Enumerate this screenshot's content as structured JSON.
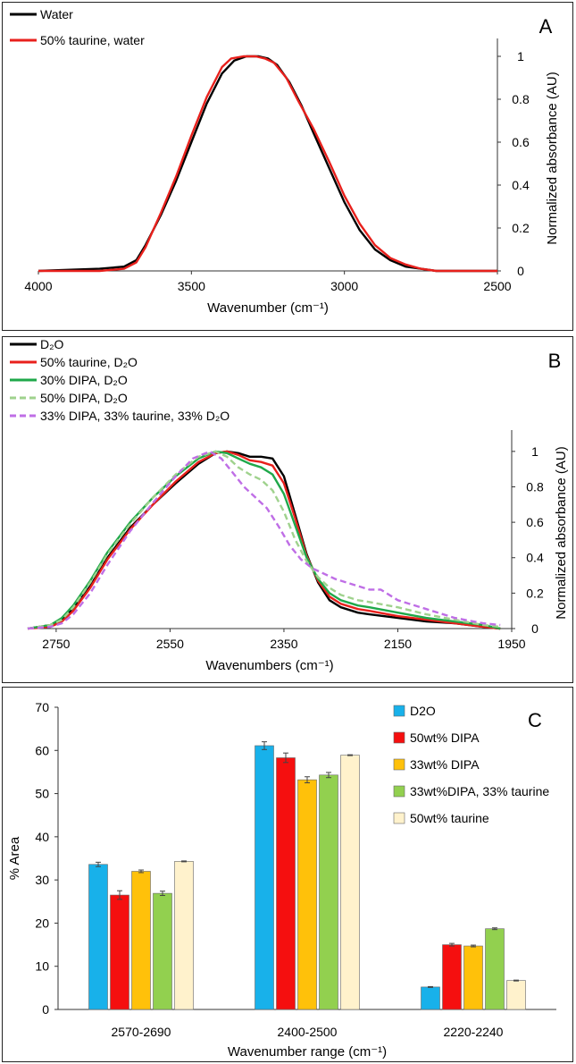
{
  "chart_data": [
    {
      "panel_label": "A",
      "type": "line",
      "xlabel": "Wavenumber (cm⁻¹)",
      "ylabel": "Normalized absorbance (AU)",
      "xlim": [
        4000,
        2500
      ],
      "ylim": [
        0,
        1.05
      ],
      "x_ticks": [
        "4000",
        "3500",
        "3000",
        "2500"
      ],
      "y_ticks": [
        "0",
        "0.2",
        "0.4",
        "0.6",
        "0.8",
        "1"
      ],
      "legend_position": "top-left",
      "series": [
        {
          "name": "Water",
          "color": "#000000",
          "dash": "solid",
          "x": [
            4000,
            3800,
            3720,
            3680,
            3650,
            3600,
            3550,
            3500,
            3450,
            3400,
            3360,
            3320,
            3280,
            3250,
            3220,
            3180,
            3140,
            3100,
            3050,
            3000,
            2950,
            2900,
            2850,
            2800,
            2750,
            2700,
            2600,
            2500
          ],
          "y": [
            0,
            0.01,
            0.02,
            0.05,
            0.12,
            0.26,
            0.42,
            0.6,
            0.78,
            0.92,
            0.98,
            1.0,
            1.0,
            0.99,
            0.96,
            0.88,
            0.77,
            0.64,
            0.48,
            0.32,
            0.19,
            0.1,
            0.05,
            0.02,
            0.01,
            0.0,
            0,
            0
          ]
        },
        {
          "name": "50% taurine, water",
          "color": "#e8201c",
          "dash": "solid",
          "x": [
            4000,
            3800,
            3720,
            3680,
            3650,
            3600,
            3550,
            3500,
            3450,
            3400,
            3370,
            3330,
            3290,
            3260,
            3230,
            3190,
            3150,
            3100,
            3050,
            3000,
            2950,
            2900,
            2850,
            2800,
            2750,
            2700,
            2600,
            2500
          ],
          "y": [
            0,
            0.0,
            0.01,
            0.04,
            0.11,
            0.27,
            0.44,
            0.63,
            0.81,
            0.95,
            0.99,
            1.0,
            1.0,
            0.99,
            0.97,
            0.9,
            0.79,
            0.66,
            0.51,
            0.35,
            0.22,
            0.12,
            0.06,
            0.03,
            0.01,
            0.0,
            0,
            0
          ]
        }
      ]
    },
    {
      "panel_label": "B",
      "type": "line",
      "xlabel": "Wavenumbers (cm⁻¹)",
      "ylabel": "Normalized absorbance (AU)",
      "xlim": [
        2800,
        1950
      ],
      "ylim": [
        0,
        1.08
      ],
      "x_ticks": [
        "2750",
        "2550",
        "2350",
        "2150",
        "1950"
      ],
      "y_ticks": [
        "0",
        "0.2",
        "0.4",
        "0.6",
        "0.8",
        "1"
      ],
      "legend_position": "top-left",
      "series": [
        {
          "name": "D₂O",
          "color": "#000000",
          "dash": "solid",
          "x": [
            2800,
            2760,
            2740,
            2720,
            2690,
            2660,
            2620,
            2580,
            2540,
            2500,
            2470,
            2450,
            2430,
            2410,
            2390,
            2370,
            2350,
            2330,
            2310,
            2290,
            2270,
            2250,
            2220,
            2200,
            2150,
            2100,
            2050,
            2000,
            1970
          ],
          "y": [
            0,
            0.02,
            0.05,
            0.11,
            0.24,
            0.4,
            0.57,
            0.7,
            0.82,
            0.93,
            0.99,
            1.0,
            0.99,
            0.97,
            0.97,
            0.96,
            0.86,
            0.64,
            0.42,
            0.26,
            0.16,
            0.12,
            0.09,
            0.08,
            0.06,
            0.04,
            0.03,
            0.01,
            0.0
          ]
        },
        {
          "name": "50% taurine, D₂O",
          "color": "#e8201c",
          "dash": "solid",
          "x": [
            2800,
            2760,
            2740,
            2720,
            2690,
            2660,
            2620,
            2580,
            2540,
            2500,
            2470,
            2450,
            2430,
            2410,
            2390,
            2370,
            2350,
            2330,
            2310,
            2290,
            2270,
            2250,
            2220,
            2200,
            2150,
            2100,
            2050,
            2000,
            1970
          ],
          "y": [
            0,
            0.01,
            0.04,
            0.1,
            0.23,
            0.39,
            0.56,
            0.7,
            0.83,
            0.94,
            0.99,
            1.0,
            0.98,
            0.95,
            0.94,
            0.92,
            0.82,
            0.62,
            0.41,
            0.27,
            0.18,
            0.14,
            0.11,
            0.1,
            0.07,
            0.05,
            0.03,
            0.01,
            0.0
          ]
        },
        {
          "name": "30% DIPA, D₂O",
          "color": "#1fa84a",
          "dash": "solid",
          "x": [
            2800,
            2760,
            2740,
            2720,
            2690,
            2660,
            2620,
            2580,
            2540,
            2500,
            2470,
            2450,
            2430,
            2410,
            2390,
            2370,
            2350,
            2330,
            2310,
            2290,
            2270,
            2250,
            2220,
            2200,
            2150,
            2100,
            2050,
            2000,
            1970
          ],
          "y": [
            0,
            0.02,
            0.06,
            0.13,
            0.27,
            0.43,
            0.6,
            0.74,
            0.86,
            0.96,
            1.0,
            0.99,
            0.96,
            0.93,
            0.91,
            0.87,
            0.76,
            0.58,
            0.4,
            0.28,
            0.2,
            0.16,
            0.13,
            0.12,
            0.09,
            0.06,
            0.04,
            0.02,
            0.0
          ]
        },
        {
          "name": "50% DIPA, D₂O",
          "color": "#9fd28d",
          "dash": "dashed",
          "x": [
            2800,
            2760,
            2740,
            2720,
            2690,
            2660,
            2620,
            2580,
            2540,
            2500,
            2470,
            2450,
            2430,
            2410,
            2390,
            2370,
            2350,
            2330,
            2310,
            2290,
            2270,
            2250,
            2220,
            2200,
            2150,
            2100,
            2050,
            2000,
            1970
          ],
          "y": [
            0,
            0.02,
            0.05,
            0.12,
            0.26,
            0.42,
            0.59,
            0.74,
            0.87,
            0.97,
            1.0,
            0.97,
            0.91,
            0.87,
            0.84,
            0.78,
            0.66,
            0.5,
            0.38,
            0.29,
            0.23,
            0.19,
            0.16,
            0.15,
            0.12,
            0.08,
            0.05,
            0.02,
            0.01
          ]
        },
        {
          "name": "33% DIPA, 33% taurine, 33% D₂O",
          "color": "#bf6ee6",
          "dash": "dashed",
          "x": [
            2800,
            2760,
            2740,
            2720,
            2690,
            2660,
            2620,
            2580,
            2540,
            2510,
            2480,
            2460,
            2440,
            2420,
            2400,
            2380,
            2360,
            2340,
            2320,
            2300,
            2280,
            2260,
            2230,
            2200,
            2180,
            2150,
            2100,
            2050,
            2000,
            1970
          ],
          "y": [
            0,
            0.01,
            0.03,
            0.08,
            0.2,
            0.36,
            0.55,
            0.71,
            0.86,
            0.96,
            1.0,
            0.96,
            0.88,
            0.8,
            0.74,
            0.68,
            0.58,
            0.47,
            0.39,
            0.34,
            0.31,
            0.28,
            0.25,
            0.22,
            0.22,
            0.16,
            0.11,
            0.06,
            0.03,
            0.02
          ]
        }
      ]
    },
    {
      "panel_label": "C",
      "type": "bar",
      "xlabel": "Wavenumber range (cm⁻¹)",
      "ylabel": "% Area",
      "ylim": [
        0,
        70
      ],
      "y_ticks": [
        "0",
        "10",
        "20",
        "30",
        "40",
        "50",
        "60",
        "70"
      ],
      "categories": [
        "2570-2690",
        "2400-2500",
        "2220-2240"
      ],
      "legend_position": "top-right",
      "series": [
        {
          "name": "D2O",
          "color": "#18b1ea",
          "values": [
            33.6,
            61.1,
            5.2
          ],
          "errors": [
            0.5,
            0.9,
            0.1
          ]
        },
        {
          "name": "50wt% DIPA",
          "color": "#f50f0f",
          "values": [
            26.5,
            58.3,
            15.0
          ],
          "errors": [
            1.0,
            1.1,
            0.3
          ]
        },
        {
          "name": "33wt% DIPA",
          "color": "#ffc10a",
          "values": [
            32.0,
            53.2,
            14.7
          ],
          "errors": [
            0.3,
            0.7,
            0.2
          ]
        },
        {
          "name": "33wt%DIPA, 33% taurine",
          "color": "#92d04f",
          "values": [
            26.9,
            54.3,
            18.7
          ],
          "errors": [
            0.5,
            0.6,
            0.2
          ]
        },
        {
          "name": "50wt% taurine",
          "color": "#fff2cc",
          "values": [
            34.3,
            58.9,
            6.7
          ],
          "errors": [
            0.1,
            0.1,
            0.1
          ]
        }
      ]
    }
  ]
}
